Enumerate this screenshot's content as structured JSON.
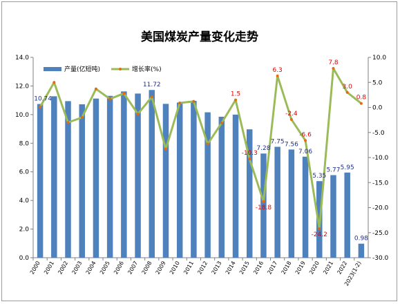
{
  "chart_data": {
    "type": "bar+line",
    "title": "美国煤炭产量变化走势",
    "categories": [
      "2000",
      "2001",
      "2002",
      "2003",
      "2004",
      "2005",
      "2006",
      "2007",
      "2008",
      "2009",
      "2010",
      "2011",
      "2012",
      "2013",
      "2014",
      "2015",
      "2016",
      "2017",
      "2018",
      "2019",
      "2020",
      "2021",
      "2022",
      "2023(1-2)"
    ],
    "series": [
      {
        "name": "产量(亿短吨)",
        "type": "bar",
        "axis": "left",
        "color": "#4f81bd",
        "values": [
          10.74,
          11.28,
          10.94,
          10.72,
          11.12,
          11.31,
          11.62,
          11.47,
          11.72,
          10.75,
          10.84,
          10.96,
          10.16,
          9.85,
          10.0,
          8.97,
          7.28,
          7.75,
          7.56,
          7.06,
          5.35,
          5.77,
          5.95,
          0.98
        ],
        "labels": {
          "0": "10.74",
          "8": "11.72",
          "16": "7.28",
          "17": "7.75",
          "18": "7.56",
          "19": "7.06",
          "20": "5.35",
          "21": "5.77",
          "22": "5.95",
          "23": "0.98"
        }
      },
      {
        "name": "增长率(%)",
        "type": "line",
        "axis": "right",
        "color": "#9bbb59",
        "values": [
          0.1,
          5.0,
          -3.0,
          -2.0,
          3.7,
          1.7,
          2.8,
          -1.3,
          2.1,
          -8.3,
          0.9,
          1.2,
          -7.3,
          -3.1,
          1.5,
          -10.3,
          -18.8,
          6.3,
          -2.4,
          -6.6,
          -24.2,
          7.8,
          3.0,
          0.8
        ],
        "labels": {
          "14": "1.5",
          "15": "-10.3",
          "16": "-18.8",
          "17": "6.3",
          "18": "-2.4",
          "19": "-6.6",
          "20": "-24.2",
          "21": "7.8",
          "22": "3.0",
          "23": "0.8"
        }
      }
    ],
    "left_axis": {
      "min": 0,
      "max": 14,
      "step": 2,
      "ticks": [
        "0.0",
        "2.0",
        "4.0",
        "6.0",
        "8.0",
        "10.0",
        "12.0",
        "14.0"
      ]
    },
    "right_axis": {
      "min": -30,
      "max": 10,
      "step": 5,
      "ticks": [
        "-30.0",
        "-25.0",
        "-20.0",
        "-15.0",
        "-10.0",
        "-5.0",
        "0.0",
        "5.0",
        "10.0"
      ]
    },
    "grid": false,
    "legend": "top-left"
  }
}
